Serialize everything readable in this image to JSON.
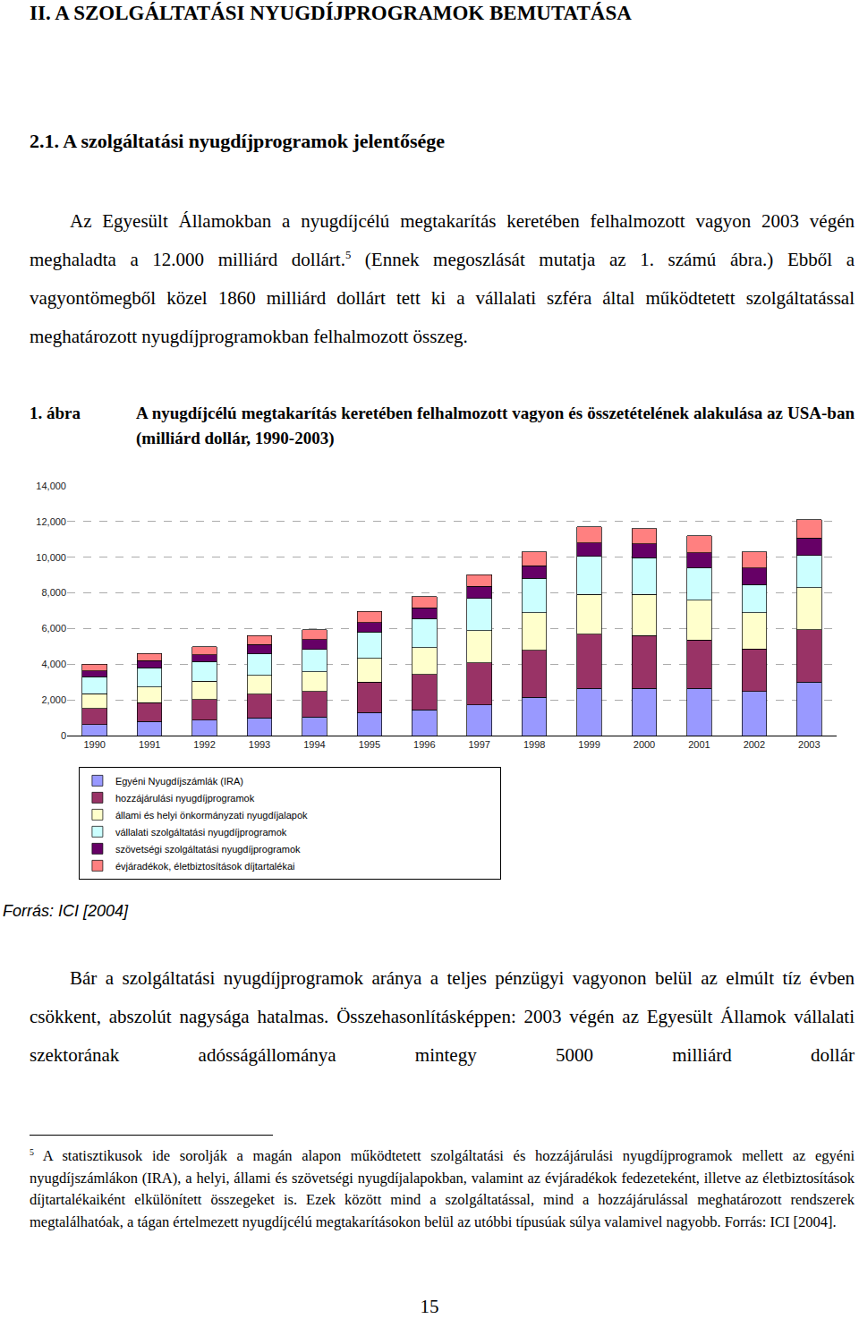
{
  "header": {
    "title": "II. A SZOLGÁLTATÁSI NYUGDÍJPROGRAMOK BEMUTATÁSA"
  },
  "section": {
    "title": "2.1. A szolgáltatási nyugdíjprogramok jelentősége"
  },
  "paragraphs": [
    {
      "parts": [
        {
          "text": "Az Egyesült Államokban a nyugdíjcélú megtakarítás keretében felhalmozott vagyon 2003 végén meghaladta a 12.000 milliárd dollárt."
        },
        {
          "footnote_ref": "5"
        },
        {
          "text": " (Ennek megoszlását mutatja az 1. számú ábra.) Ebből a vagyontömegből közel 1860 milliárd dollárt tett ki a vállalati szféra által működtetett szolgáltatással meghatározott nyugdíjprogramokban felhalmozott összeg."
        }
      ]
    },
    {
      "parts": [
        {
          "text": "Bár a szolgáltatási nyugdíjprogramok aránya a teljes pénzügyi vagyonon belül az elmúlt tíz évben csökkent, abszolút nagysága hatalmas. Összehasonlításképpen: 2003 végén az Egyesült Államok vállalati szektorának adósságállománya mintegy 5000 milliárd dollár"
        }
      ]
    }
  ],
  "figure": {
    "label": "1. ábra",
    "caption": "A nyugdíjcélú megtakarítás keretében felhalmozott vagyon és összetételének alakulása az USA-ban (milliárd dollár, 1990-2003)",
    "source": "Forrás: ICI [2004]"
  },
  "chart_data": {
    "type": "bar",
    "stacked": true,
    "grid": true,
    "legend": "bottom",
    "categories": [
      "1990",
      "1991",
      "1992",
      "1993",
      "1994",
      "1995",
      "1996",
      "1997",
      "1998",
      "1999",
      "2000",
      "2001",
      "2002",
      "2003"
    ],
    "ylim": [
      0,
      14000
    ],
    "yticks": [
      0,
      {
        "value": 2000,
        "label": "2,000"
      },
      {
        "value": 4000,
        "label": "4,000"
      },
      {
        "value": 6000,
        "label": "6,000"
      },
      {
        "value": 8000,
        "label": "8,000"
      },
      {
        "value": 10000,
        "label": "10,000"
      },
      {
        "value": 12000,
        "label": "12,000"
      },
      {
        "value": 14000,
        "label": "14,000"
      }
    ],
    "series": [
      {
        "name": "Egyéni Nyugdíjszámlák (IRA)",
        "color": "#9999ff",
        "values": [
          620,
          780,
          870,
          990,
          1030,
          1280,
          1440,
          1730,
          2140,
          2640,
          2640,
          2640,
          2470,
          3010
        ]
      },
      {
        "name": "hozzájárulási nyugdíjprogramok",
        "color": "#993366",
        "values": [
          900,
          1070,
          1150,
          1320,
          1440,
          1730,
          1980,
          2350,
          2640,
          3040,
          2960,
          2710,
          2390,
          2920
        ]
      },
      {
        "name": "állami és helyi önkormányzati nyugdíjalapok",
        "color": "#ffffcc",
        "values": [
          830,
          870,
          1030,
          1070,
          1110,
          1310,
          1520,
          1810,
          2100,
          2230,
          2310,
          2230,
          2020,
          2350
        ]
      },
      {
        "name": "vállalati szolgáltatási nyugdíjprogramok",
        "color": "#ccffff",
        "values": [
          940,
          1070,
          1110,
          1190,
          1240,
          1490,
          1610,
          1810,
          1930,
          2140,
          2060,
          1810,
          1600,
          1810
        ]
      },
      {
        "name": "szövetségi szolgáltatási nyugdíjprogramok",
        "color": "#660066",
        "values": [
          330,
          410,
          370,
          540,
          570,
          530,
          620,
          660,
          700,
          740,
          780,
          860,
          910,
          990
        ]
      },
      {
        "name": "évjáradékok, életbiztosítások díjtartalékai",
        "color": "#ff8080",
        "values": [
          370,
          410,
          450,
          490,
          540,
          620,
          610,
          660,
          780,
          910,
          860,
          950,
          900,
          1030
        ]
      }
    ]
  },
  "footnote": {
    "marker": "5",
    "text": "A statisztikusok ide sorolják a magán alapon működtetett szolgáltatási és hozzájárulási nyugdíjprogramok mellett az egyéni nyugdíjszámlákon (IRA), a helyi, állami és szövetségi nyugdíjalapokban, valamint az évjáradékok fedezeteként, illetve az életbiztosítások díjtartalékaiként elkülönített összegeket is. Ezek között mind a szolgáltatással, mind a hozzájárulással meghatározott rendszerek megtalálhatóak, a tágan értelmezett nyugdíjcélú megtakarításokon belül az utóbbi típusúak súlya valamivel nagyobb. Forrás: ICI [2004]."
  },
  "page_number": "15"
}
